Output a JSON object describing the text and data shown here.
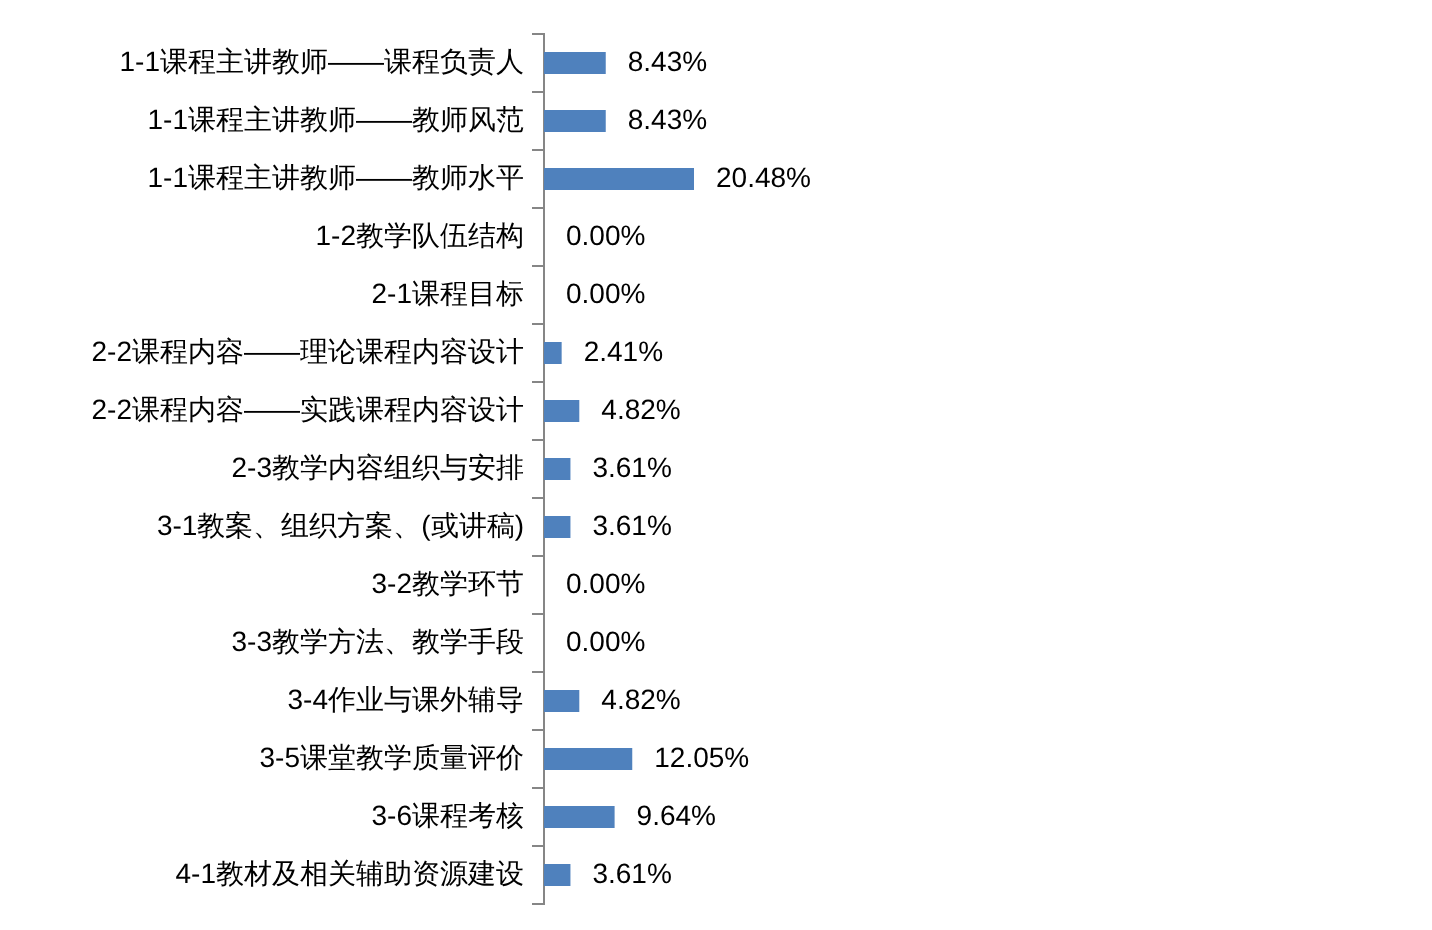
{
  "chart_data": {
    "type": "bar",
    "orientation": "horizontal",
    "categories": [
      "1-1课程主讲教师——课程负责人",
      "1-1课程主讲教师——教师风范",
      "1-1课程主讲教师——教师水平",
      "1-2教学队伍结构",
      "2-1课程目标",
      "2-2课程内容——理论课程内容设计",
      "2-2课程内容——实践课程内容设计",
      "2-3教学内容组织与安排",
      "3-1教案、组织方案、(或讲稿)",
      "3-2教学环节",
      "3-3教学方法、教学手段",
      "3-4作业与课外辅导",
      "3-5课堂教学质量评价",
      "3-6课程考核",
      "4-1教材及相关辅助资源建设"
    ],
    "values": [
      8.43,
      8.43,
      20.48,
      0,
      0,
      2.41,
      4.82,
      3.61,
      3.61,
      0,
      0,
      4.82,
      12.05,
      9.64,
      3.61
    ],
    "value_labels": [
      "8.43%",
      "8.43%",
      "20.48%",
      "0.00%",
      "0.00%",
      "2.41%",
      "4.82%",
      "3.61%",
      "3.61%",
      "0.00%",
      "0.00%",
      "4.82%",
      "12.05%",
      "9.64%",
      "3.61%"
    ],
    "color": "#4f81bd",
    "tick_labels": "y"
  }
}
